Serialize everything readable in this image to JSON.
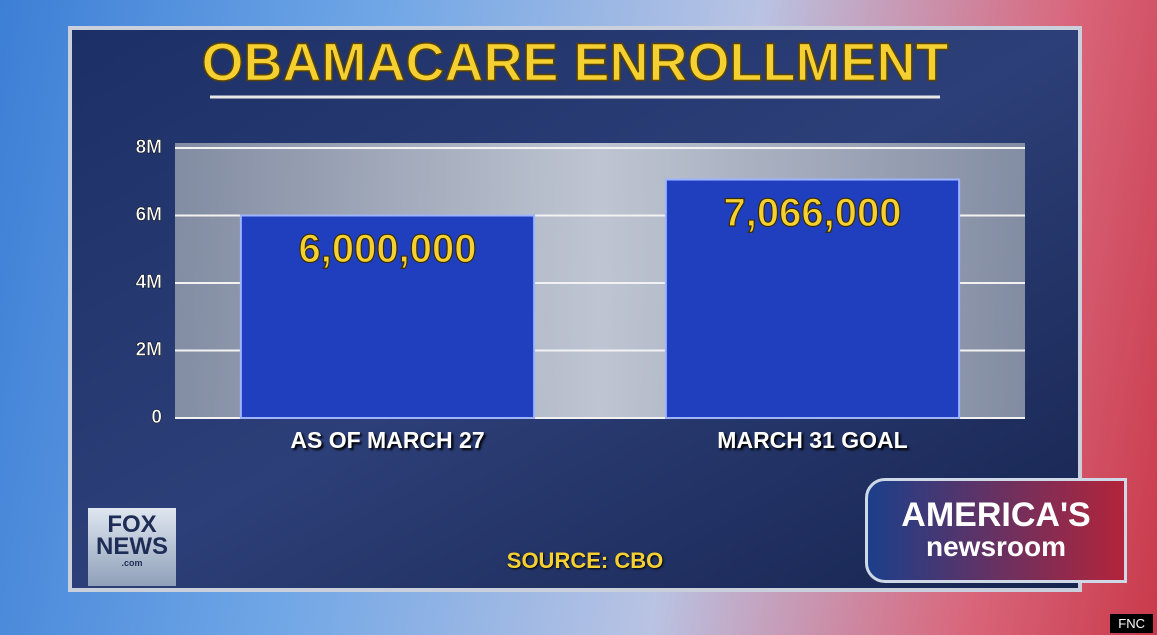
{
  "chart_data": {
    "type": "bar",
    "title": "OBAMACARE ENROLLMENT",
    "categories": [
      "AS OF MARCH 27",
      "MARCH 31 GOAL"
    ],
    "values": [
      6000000,
      7066000
    ],
    "value_labels": [
      "6,000,000",
      "7,066,000"
    ],
    "color": "#1f3fbf",
    "ylim": [
      0,
      8000000
    ],
    "yticks": [
      0,
      {
        "value": 2000000,
        "label": "2M"
      },
      {
        "value": 4000000,
        "label": "4M"
      },
      {
        "value": 6000000,
        "label": "6M"
      },
      {
        "value": 8000000,
        "label": "8M"
      }
    ],
    "grid": true,
    "source": "SOURCE: CBO"
  },
  "overlay": {
    "logo": "FOX NEWS",
    "logo_sub": ".com",
    "show_line1": "AMERICA'S",
    "show_line2": "newsroom",
    "watermark": "FNC"
  }
}
